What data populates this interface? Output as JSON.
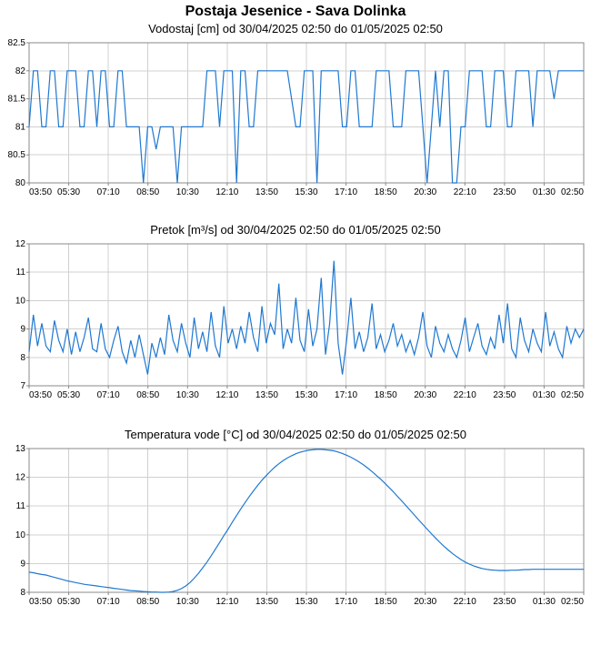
{
  "main_title": "Postaja Jesenice - Sava Dolinka",
  "charts": [
    {
      "title": "Vodostaj [cm] od 30/04/2025 02:50 do 01/05/2025 02:50",
      "ylim": [
        80,
        82.5
      ],
      "yticks": [
        80,
        80.5,
        81,
        81.5,
        82,
        82.5
      ],
      "line_color": "#1f78d1",
      "grid_color": "#d0d0d0",
      "border_color": "#888888",
      "background_color": "#ffffff",
      "label_fontsize": 10,
      "title_fontsize": 13,
      "xticks": [
        "03:50",
        "05:30",
        "07:10",
        "08:50",
        "10:30",
        "12:10",
        "13:50",
        "15:30",
        "17:10",
        "18:50",
        "20:30",
        "22:10",
        "23:50",
        "01:30",
        "02:50"
      ],
      "values": [
        81,
        82,
        82,
        81,
        81,
        82,
        82,
        81,
        81,
        82,
        82,
        82,
        81,
        81,
        82,
        82,
        81,
        82,
        82,
        81,
        81,
        82,
        82,
        81,
        81,
        81,
        81,
        80,
        81,
        81,
        80.6,
        81,
        81,
        81,
        81,
        80,
        81,
        81,
        81,
        81,
        81,
        81,
        82,
        82,
        82,
        81,
        82,
        82,
        82,
        80,
        82,
        82,
        81,
        81,
        82,
        82,
        82,
        82,
        82,
        82,
        82,
        82,
        81.5,
        81,
        81,
        82,
        82,
        82,
        80,
        82,
        82,
        82,
        82,
        82,
        81,
        81,
        82,
        82,
        81,
        81,
        81,
        81,
        82,
        82,
        82,
        82,
        81,
        81,
        81,
        82,
        82,
        82,
        82,
        81,
        80,
        81,
        82,
        81,
        82,
        82,
        80,
        80,
        81,
        81,
        82,
        82,
        82,
        82,
        81,
        81,
        82,
        82,
        82,
        81,
        81,
        82,
        82,
        82,
        82,
        81,
        82,
        82,
        82,
        82,
        81.5,
        82,
        82,
        82,
        82,
        82,
        82,
        82
      ]
    },
    {
      "title": "Pretok [m³/s] od 30/04/2025 02:50 do 01/05/2025 02:50",
      "ylim": [
        7,
        12
      ],
      "yticks": [
        7,
        8,
        9,
        10,
        11,
        12
      ],
      "line_color": "#1f78d1",
      "grid_color": "#d0d0d0",
      "border_color": "#888888",
      "background_color": "#ffffff",
      "label_fontsize": 10,
      "title_fontsize": 13,
      "xticks": [
        "03:50",
        "05:30",
        "07:10",
        "08:50",
        "10:30",
        "12:10",
        "13:50",
        "15:30",
        "17:10",
        "18:50",
        "20:30",
        "22:10",
        "23:50",
        "01:30",
        "02:50"
      ],
      "values": [
        8.2,
        9.5,
        8.4,
        9.2,
        8.4,
        8.2,
        9.3,
        8.6,
        8.2,
        9.0,
        8.1,
        8.9,
        8.2,
        8.7,
        9.4,
        8.3,
        8.2,
        9.2,
        8.3,
        8.0,
        8.6,
        9.1,
        8.2,
        7.8,
        8.6,
        8.0,
        8.8,
        8.1,
        7.4,
        8.5,
        8.0,
        8.7,
        8.1,
        9.5,
        8.6,
        8.2,
        9.2,
        8.5,
        8.0,
        9.4,
        8.3,
        8.9,
        8.2,
        9.6,
        8.4,
        8.0,
        9.8,
        8.5,
        9.0,
        8.3,
        9.1,
        8.5,
        9.6,
        8.7,
        8.2,
        9.8,
        8.5,
        9.2,
        8.8,
        10.6,
        8.3,
        9.0,
        8.5,
        10.1,
        8.6,
        8.2,
        9.7,
        8.4,
        9.0,
        10.8,
        8.1,
        9.2,
        11.4,
        8.5,
        7.4,
        8.6,
        10.1,
        8.3,
        8.9,
        8.2,
        8.7,
        9.9,
        8.3,
        8.8,
        8.2,
        8.6,
        9.2,
        8.4,
        8.8,
        8.2,
        8.6,
        8.1,
        8.7,
        9.6,
        8.4,
        8.0,
        9.1,
        8.5,
        8.2,
        8.8,
        8.3,
        8.0,
        8.6,
        9.4,
        8.2,
        8.7,
        9.2,
        8.4,
        8.1,
        8.7,
        8.3,
        9.5,
        8.5,
        9.9,
        8.3,
        8.0,
        9.4,
        8.6,
        8.2,
        9.0,
        8.5,
        8.2,
        9.6,
        8.4,
        8.9,
        8.3,
        8.0,
        9.1,
        8.5,
        9.0,
        8.7,
        9.0
      ]
    },
    {
      "title": "Temperatura vode [°C] od 30/04/2025 02:50 do 01/05/2025 02:50",
      "ylim": [
        8,
        13
      ],
      "yticks": [
        8,
        9,
        10,
        11,
        12,
        13
      ],
      "line_color": "#1f78d1",
      "grid_color": "#d0d0d0",
      "border_color": "#888888",
      "background_color": "#ffffff",
      "label_fontsize": 10,
      "title_fontsize": 13,
      "xticks": [
        "03:50",
        "05:30",
        "07:10",
        "08:50",
        "10:30",
        "12:10",
        "13:50",
        "15:30",
        "17:10",
        "18:50",
        "20:30",
        "22:10",
        "23:50",
        "01:30",
        "02:50"
      ],
      "values": [
        8.7,
        8.68,
        8.65,
        8.62,
        8.6,
        8.56,
        8.52,
        8.48,
        8.44,
        8.4,
        8.37,
        8.34,
        8.31,
        8.28,
        8.26,
        8.24,
        8.22,
        8.2,
        8.18,
        8.16,
        8.14,
        8.12,
        8.1,
        8.08,
        8.06,
        8.05,
        8.04,
        8.03,
        8.02,
        8.01,
        8.01,
        8.0,
        8.0,
        8.01,
        8.03,
        8.07,
        8.13,
        8.22,
        8.34,
        8.49,
        8.66,
        8.85,
        9.05,
        9.27,
        9.5,
        9.73,
        9.97,
        10.2,
        10.44,
        10.67,
        10.9,
        11.12,
        11.33,
        11.53,
        11.72,
        11.9,
        12.06,
        12.21,
        12.35,
        12.47,
        12.58,
        12.67,
        12.75,
        12.82,
        12.87,
        12.91,
        12.94,
        12.96,
        12.97,
        12.97,
        12.96,
        12.94,
        12.92,
        12.88,
        12.83,
        12.77,
        12.7,
        12.62,
        12.53,
        12.43,
        12.32,
        12.2,
        12.07,
        11.94,
        11.8,
        11.65,
        11.5,
        11.34,
        11.18,
        11.02,
        10.85,
        10.69,
        10.52,
        10.36,
        10.2,
        10.04,
        9.89,
        9.74,
        9.6,
        9.47,
        9.35,
        9.24,
        9.14,
        9.05,
        8.98,
        8.92,
        8.87,
        8.83,
        8.8,
        8.78,
        8.77,
        8.76,
        8.76,
        8.76,
        8.77,
        8.77,
        8.78,
        8.79,
        8.79,
        8.8,
        8.8,
        8.8,
        8.8,
        8.8,
        8.8,
        8.8,
        8.8,
        8.8,
        8.8,
        8.8,
        8.8,
        8.8
      ]
    }
  ]
}
